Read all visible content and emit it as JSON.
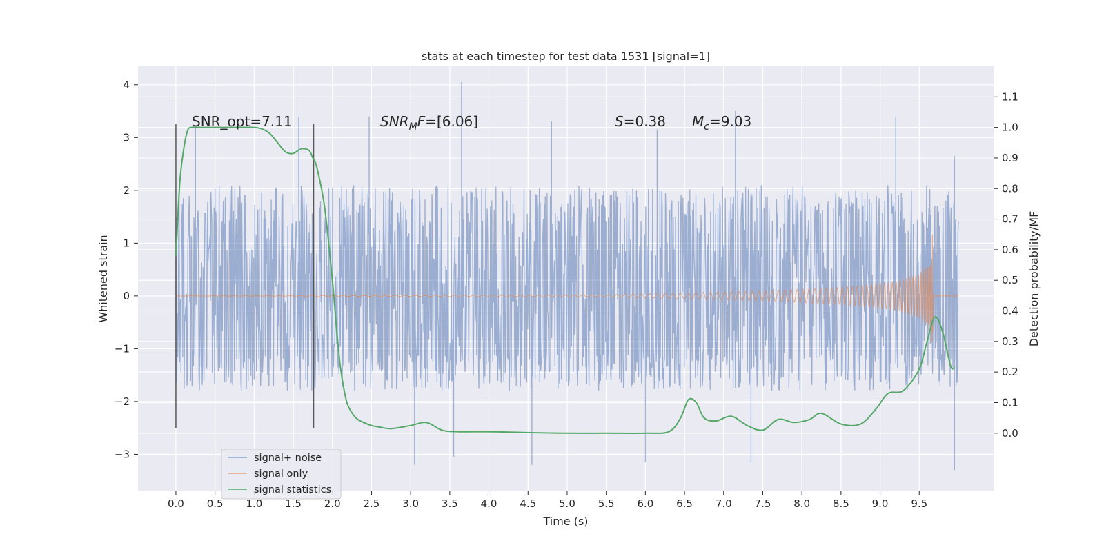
{
  "chart_data": {
    "type": "line",
    "title": "stats at each timestep for test data 1531 [signal=1]",
    "xlabel": "Time (s)",
    "ylabel": "Whitened strain",
    "y2label": "Detection probability/MF",
    "xlim": [
      -0.4844,
      10.45
    ],
    "ylim": [
      -3.7,
      4.35
    ],
    "y2lim": [
      -0.19,
      1.2
    ],
    "x_ticks": [
      0.0,
      0.5,
      1.0,
      1.5,
      2.0,
      2.5,
      3.0,
      3.5,
      4.0,
      4.5,
      5.0,
      5.5,
      6.0,
      6.5,
      7.0,
      7.5,
      8.0,
      8.5,
      9.0,
      9.5
    ],
    "y_ticks": [
      -3,
      -2,
      -1,
      0,
      1,
      2,
      3,
      4
    ],
    "y2_ticks": [
      0.0,
      0.1,
      0.2,
      0.3,
      0.4,
      0.5,
      0.6,
      0.7,
      0.8,
      0.9,
      1.0,
      1.1
    ],
    "grid": true,
    "legend_position": "lower-left",
    "colors": {
      "signal_noise": "#4c72b0",
      "signal_only": "#dd8452",
      "statistics": "#55a868",
      "marker": "#555555",
      "plot_bg": "#eaeaf2",
      "grid": "#ffffff"
    },
    "series": [
      {
        "name": "signal+ noise",
        "axis": "left",
        "style": "dense noise trace",
        "x_range": [
          0.0,
          10.0
        ],
        "envelope": {
          "typical_min": -1.8,
          "typical_max": 2.0,
          "dense_band": [
            -1.2,
            1.35
          ]
        },
        "peaks": [
          {
            "x": 0.25,
            "y": 3.2
          },
          {
            "x": 1.57,
            "y": 3.4
          },
          {
            "x": 2.47,
            "y": 3.4
          },
          {
            "x": 3.65,
            "y": 4.05
          },
          {
            "x": 4.8,
            "y": 3.3
          },
          {
            "x": 6.15,
            "y": 3.15
          },
          {
            "x": 7.15,
            "y": 3.5
          },
          {
            "x": 9.2,
            "y": 3.4
          },
          {
            "x": 9.95,
            "y": 2.65
          }
        ],
        "troughs": [
          {
            "x": 3.05,
            "y": -3.2
          },
          {
            "x": 3.55,
            "y": -3.05
          },
          {
            "x": 4.55,
            "y": -3.2
          },
          {
            "x": 6.0,
            "y": -3.15
          },
          {
            "x": 7.35,
            "y": -3.15
          },
          {
            "x": 9.95,
            "y": -3.3
          }
        ]
      },
      {
        "name": "signal only",
        "axis": "left",
        "style": "chirp waveform",
        "x_range": [
          0.0,
          10.0
        ],
        "merger_time": 9.68,
        "envelope": [
          {
            "x": 0.0,
            "amp": 0.0
          },
          {
            "x": 5.5,
            "amp": 0.02
          },
          {
            "x": 6.5,
            "amp": 0.06
          },
          {
            "x": 7.5,
            "amp": 0.09
          },
          {
            "x": 8.5,
            "amp": 0.16
          },
          {
            "x": 9.2,
            "amp": 0.27
          },
          {
            "x": 9.5,
            "amp": 0.42
          },
          {
            "x": 9.68,
            "amp": 0.7
          },
          {
            "x": 10.0,
            "amp": 0.0
          }
        ]
      },
      {
        "name": "signal statistics",
        "axis": "right",
        "x": [
          0.0,
          0.05,
          0.1,
          0.15,
          0.2,
          0.3,
          0.5,
          0.8,
          1.0,
          1.1,
          1.2,
          1.3,
          1.4,
          1.5,
          1.6,
          1.7,
          1.75,
          1.8,
          1.9,
          2.0,
          2.05,
          2.1,
          2.15,
          2.2,
          2.3,
          2.4,
          2.5,
          2.6,
          2.75,
          3.0,
          3.2,
          3.4,
          3.6,
          4.0,
          4.5,
          5.0,
          5.5,
          6.0,
          6.3,
          6.45,
          6.55,
          6.65,
          6.75,
          6.9,
          7.1,
          7.3,
          7.5,
          7.7,
          7.9,
          8.1,
          8.25,
          8.5,
          8.75,
          8.95,
          9.1,
          9.3,
          9.5,
          9.6,
          9.7,
          9.8,
          9.9,
          9.95
        ],
        "y": [
          0.58,
          0.82,
          0.93,
          0.99,
          1.0,
          1.0,
          1.0,
          1.0,
          1.0,
          0.995,
          0.98,
          0.95,
          0.92,
          0.915,
          0.93,
          0.925,
          0.9,
          0.87,
          0.74,
          0.5,
          0.35,
          0.22,
          0.14,
          0.09,
          0.05,
          0.035,
          0.025,
          0.02,
          0.015,
          0.025,
          0.035,
          0.01,
          0.005,
          0.005,
          0.002,
          0.0,
          0.0,
          0.0,
          0.005,
          0.05,
          0.11,
          0.1,
          0.05,
          0.04,
          0.055,
          0.025,
          0.01,
          0.045,
          0.035,
          0.045,
          0.065,
          0.03,
          0.03,
          0.08,
          0.13,
          0.14,
          0.21,
          0.3,
          0.38,
          0.33,
          0.22,
          0.215
        ]
      }
    ],
    "vertical_markers": [
      {
        "x": 0.0,
        "y_range": [
          -2.5,
          3.25
        ]
      },
      {
        "x": 1.76,
        "y_range": [
          -2.5,
          3.25
        ]
      }
    ],
    "annotations": {
      "snr_opt": "SNR_opt=7.11",
      "snr_mf_prefix": "SNR",
      "snr_mf_sub": "M",
      "snr_mf_suffix": "F=[6.06]",
      "s_var": "S",
      "s_value": "=0.38",
      "mc_var": "M",
      "mc_sub": "c",
      "mc_value": "=9.03"
    }
  }
}
